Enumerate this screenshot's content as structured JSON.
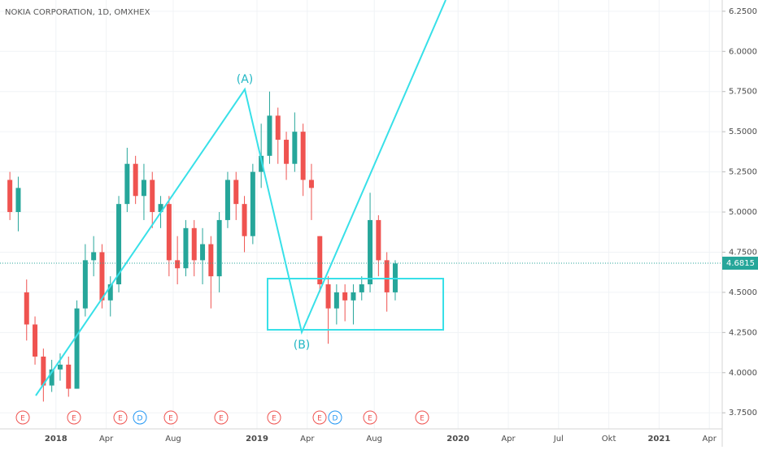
{
  "chart_data": {
    "type": "candlestick",
    "title": "NOKIA CORPORATION, 1D, OMXHEX",
    "categories": [
      null,
      null,
      null,
      null,
      null,
      null,
      "2018",
      null,
      null,
      null,
      null,
      null,
      "Apr",
      null,
      null,
      null,
      null,
      null,
      null,
      null,
      "Aug",
      null,
      null,
      null,
      null,
      null,
      null,
      null,
      null,
      null,
      "2019",
      null,
      null,
      null,
      null,
      null,
      "Apr",
      null,
      null,
      null,
      null,
      null,
      null,
      null,
      "Aug",
      null,
      null,
      null,
      null,
      null,
      null,
      null,
      null,
      null,
      "2020",
      null,
      null,
      null,
      null,
      null,
      "Apr",
      null,
      null,
      null,
      null,
      null,
      "Jul",
      null,
      null,
      null,
      null,
      null,
      "Okt",
      null,
      null,
      null,
      null,
      null,
      "2021",
      null,
      null,
      null,
      null,
      null,
      "Apr"
    ],
    "open": [
      5.2,
      5.0,
      4.5,
      4.3,
      4.1,
      3.92,
      4.02,
      4.05,
      3.9,
      4.4,
      4.7,
      4.75,
      4.45,
      4.55,
      5.05,
      5.3,
      5.1,
      5.2,
      5.0,
      5.05,
      4.7,
      4.65,
      4.9,
      4.7,
      4.8,
      4.6,
      4.95,
      5.2,
      5.05,
      4.85,
      5.25,
      5.35,
      5.6,
      5.45,
      5.3,
      5.5,
      5.2,
      4.85,
      4.55,
      4.4,
      4.5,
      4.45,
      4.5,
      4.55,
      4.95,
      4.7,
      4.5,
      null,
      null,
      null,
      null,
      null,
      null,
      null,
      null,
      null,
      null,
      null,
      null,
      null,
      null,
      null,
      null,
      null,
      null,
      null,
      null,
      null,
      null,
      null,
      null,
      null,
      null,
      null,
      null,
      null,
      null,
      null,
      null,
      null,
      null,
      null,
      null,
      null,
      null
    ],
    "high": [
      5.25,
      5.22,
      4.58,
      4.35,
      4.15,
      4.08,
      4.12,
      4.1,
      4.45,
      4.8,
      4.85,
      4.8,
      4.6,
      5.1,
      5.4,
      5.35,
      5.3,
      5.25,
      5.1,
      5.1,
      4.85,
      4.95,
      4.95,
      4.9,
      4.85,
      5.0,
      5.25,
      5.25,
      5.1,
      5.3,
      5.55,
      5.75,
      5.65,
      5.5,
      5.62,
      5.55,
      5.3,
      4.85,
      4.6,
      4.55,
      4.55,
      4.55,
      4.6,
      5.12,
      4.98,
      4.75,
      4.7,
      null,
      null,
      null,
      null,
      null,
      null,
      null,
      null,
      null,
      null,
      null,
      null,
      null,
      null,
      null,
      null,
      null,
      null,
      null,
      null,
      null,
      null,
      null,
      null,
      null,
      null,
      null,
      null,
      null,
      null,
      null,
      null,
      null,
      null,
      null,
      null,
      null,
      null
    ],
    "low": [
      4.95,
      4.88,
      4.2,
      4.05,
      3.82,
      3.88,
      3.95,
      3.85,
      3.9,
      4.35,
      4.6,
      4.4,
      4.35,
      4.5,
      5.0,
      5.05,
      4.95,
      4.9,
      4.9,
      4.6,
      4.55,
      4.6,
      4.6,
      4.55,
      4.4,
      4.5,
      4.9,
      4.95,
      4.75,
      4.8,
      5.15,
      5.3,
      5.3,
      5.2,
      5.25,
      5.1,
      4.95,
      4.5,
      4.18,
      4.3,
      4.32,
      4.3,
      4.45,
      4.5,
      4.6,
      4.38,
      4.45,
      null,
      null,
      null,
      null,
      null,
      null,
      null,
      null,
      null,
      null,
      null,
      null,
      null,
      null,
      null,
      null,
      null,
      null,
      null,
      null,
      null,
      null,
      null,
      null,
      null,
      null,
      null,
      null,
      null,
      null,
      null,
      null,
      null,
      null,
      null,
      null,
      null,
      null
    ],
    "close": [
      5.0,
      5.15,
      4.3,
      4.1,
      3.92,
      4.02,
      4.05,
      3.9,
      4.4,
      4.7,
      4.75,
      4.45,
      4.55,
      5.05,
      5.3,
      5.1,
      5.2,
      5.0,
      5.05,
      4.7,
      4.65,
      4.9,
      4.7,
      4.8,
      4.6,
      4.95,
      5.2,
      5.05,
      4.85,
      5.25,
      5.35,
      5.6,
      5.45,
      5.3,
      5.5,
      5.2,
      5.15,
      4.55,
      4.4,
      4.5,
      4.45,
      4.5,
      4.55,
      4.95,
      4.7,
      4.5,
      4.68,
      null,
      null,
      null,
      null,
      null,
      null,
      null,
      null,
      null,
      null,
      null,
      null,
      null,
      null,
      null,
      null,
      null,
      null,
      null,
      null,
      null,
      null,
      null,
      null,
      null,
      null,
      null,
      null,
      null,
      null,
      null,
      null,
      null,
      null,
      null,
      null,
      null,
      null
    ],
    "up_color": "#26a69a",
    "down_color": "#ef5350",
    "ylim": [
      3.65,
      6.32
    ],
    "yticks": [
      {
        "value": 3.75,
        "label": "3.7500"
      },
      {
        "value": 4.0,
        "label": "4.0000"
      },
      {
        "value": 4.25,
        "label": "4.2500"
      },
      {
        "value": 4.5,
        "label": "4.5000"
      },
      {
        "value": 4.75,
        "label": "4.7500"
      },
      {
        "value": 5.0,
        "label": "5.0000"
      },
      {
        "value": 5.25,
        "label": "5.2500"
      },
      {
        "value": 5.5,
        "label": "5.5000"
      },
      {
        "value": 5.75,
        "label": "5.7500"
      },
      {
        "value": 6.0,
        "label": "6.0000"
      },
      {
        "value": 6.25,
        "label": "6.2500"
      }
    ],
    "last_price": 4.6815,
    "last_price_color": "#26a69a",
    "grid": true,
    "annotations": [
      "(A)",
      "(B)"
    ],
    "events": [
      "E",
      "E",
      "E",
      "D",
      "E",
      "E",
      "E",
      "E",
      "D",
      "E",
      "E"
    ]
  }
}
